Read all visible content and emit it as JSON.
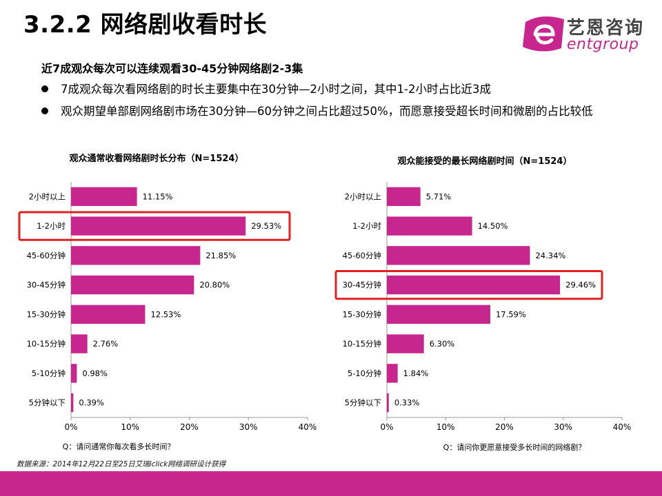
{
  "title": "3.2.2 网络剧收看时长",
  "logo": {
    "cn": "艺恩咨询",
    "en": "entgroup"
  },
  "headline": "近7成观众每次可以连续观看30-45分钟网络剧2-3集",
  "bullets": [
    "7成观众每次看网络剧的时长主要集中在30分钟—2小时之间，其中1-2小时占比近3成",
    "观众期望单部剧网络剧市场在30分钟—60分钟之间占比超过50%，而愿意接受超长时间和微剧的占比较低"
  ],
  "source": "数据来源：2014年12月22日至25日艾瑞iclick网络调研设计获得",
  "colors": {
    "bar": "#c8268f",
    "highlight": "#e02020",
    "footer": "#c8268f"
  },
  "chart_data": [
    {
      "type": "bar",
      "orientation": "horizontal",
      "title": "观众通常收看网络剧时长分布（N=1524）",
      "categories": [
        "2小时以上",
        "1-2小时",
        "45-60分钟",
        "30-45分钟",
        "15-30分钟",
        "10-15分钟",
        "5-10分钟",
        "5分钟以下"
      ],
      "values": [
        11.15,
        29.53,
        21.85,
        20.8,
        12.53,
        2.76,
        0.98,
        0.39
      ],
      "value_labels": [
        "11.15%",
        "29.53%",
        "21.85%",
        "20.80%",
        "12.53%",
        "2.76%",
        "0.98%",
        "0.39%"
      ],
      "xlim": [
        0,
        40
      ],
      "xticks": [
        "0%",
        "10%",
        "20%",
        "30%",
        "40%"
      ],
      "highlight": "1-2小时",
      "question": "Q：请问通常你每次看多长时间？"
    },
    {
      "type": "bar",
      "orientation": "horizontal",
      "title": "观众能接受的最长网络剧时间（N=1524）",
      "categories": [
        "2小时以上",
        "1-2小时",
        "45-60分钟",
        "30-45分钟",
        "15-30分钟",
        "10-15分钟",
        "5-10分钟",
        "5分钟以下"
      ],
      "values": [
        5.71,
        14.5,
        24.34,
        29.46,
        17.59,
        6.3,
        1.84,
        0.33
      ],
      "value_labels": [
        "5.71%",
        "14.50%",
        "24.34%",
        "29.46%",
        "17.59%",
        "6.30%",
        "1.84%",
        "0.33%"
      ],
      "xlim": [
        0,
        40
      ],
      "xticks": [
        "0%",
        "10%",
        "20%",
        "30%",
        "40%"
      ],
      "highlight": "30-45分钟",
      "question": "Q：请问你更愿意接受多长时间的网络剧？"
    }
  ]
}
